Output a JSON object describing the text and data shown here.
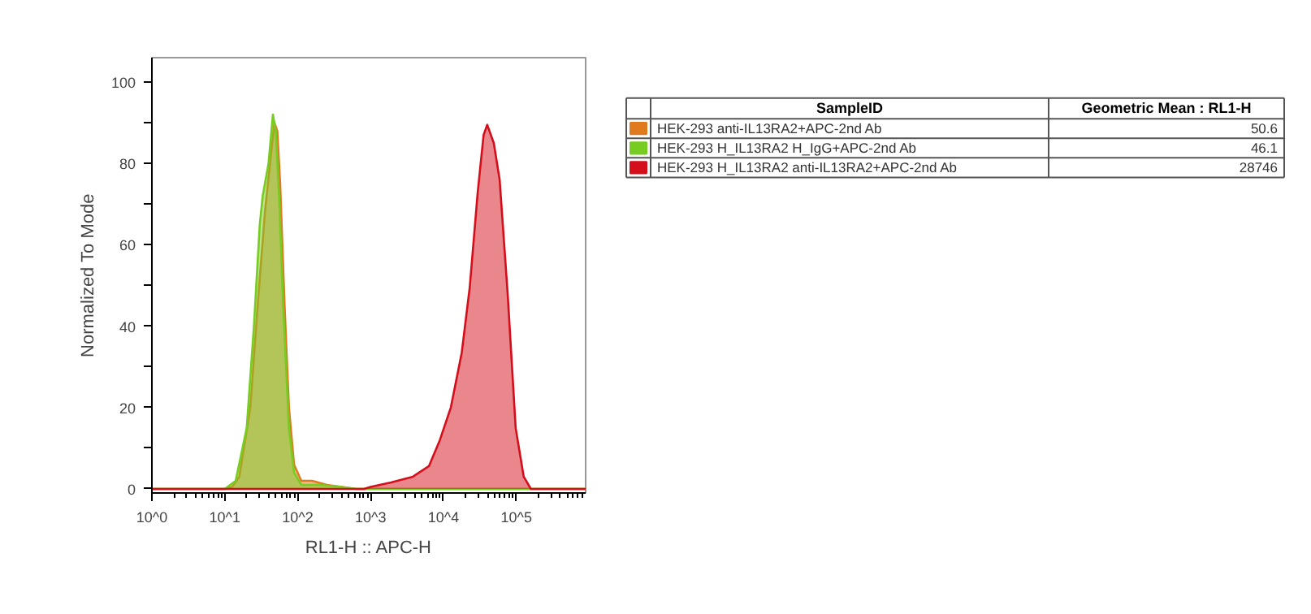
{
  "chart_data": {
    "type": "area",
    "xlabel": "RL1-H :: APC-H",
    "ylabel": "Normalized To Mode",
    "legend_title": "SampleID",
    "legend": "right",
    "log": "x",
    "grid": false,
    "xlim": [
      1,
      891000
    ],
    "ylim": [
      -1,
      106
    ],
    "xticks": [
      {
        "value": 1,
        "label": "10^0"
      },
      {
        "value": 10,
        "label": "10^1"
      },
      {
        "value": 100,
        "label": "10^2"
      },
      {
        "value": 1000,
        "label": "10^3"
      },
      {
        "value": 10000,
        "label": "10^4"
      },
      {
        "value": 100000,
        "label": "10^5"
      }
    ],
    "yticks": [
      0,
      {
        "value": 10,
        "label": null
      },
      20,
      {
        "value": 30,
        "label": null
      },
      40,
      {
        "value": 50,
        "label": null
      },
      60,
      {
        "value": 70,
        "label": null
      },
      80,
      {
        "value": 90,
        "label": null
      },
      100
    ],
    "annotations": [
      "Geometric Mean : RL1-H",
      "50.6",
      "46.1",
      "28746"
    ],
    "series": [
      {
        "name": "HEK-293 anti-IL13RA2+APC-2nd Ab",
        "color": "#e07a1f",
        "x": [
          1,
          10,
          12.6,
          15.8,
          22.4,
          28.2,
          35.5,
          41.7,
          47.9,
          52.5,
          57.5,
          66.1,
          75.9,
          89.1,
          112,
          158,
          251,
          398,
          631,
          891000
        ],
        "values": [
          0,
          0,
          0.5,
          3,
          20,
          45,
          68,
          80,
          90,
          88,
          75,
          45,
          20,
          6,
          2,
          2,
          1,
          0.5,
          0,
          0
        ]
      },
      {
        "name": "HEK-293 H_IL13RA2 H_IgG+APC-2nd Ab",
        "color": "#77cc22",
        "x": [
          1,
          10,
          14.1,
          20,
          25.1,
          30.2,
          33.1,
          39.8,
          45.7,
          50.1,
          56.2,
          63.1,
          75.9,
          89.1,
          112,
          200,
          398,
          631,
          891000
        ],
        "values": [
          0,
          0,
          2,
          15,
          40,
          65,
          72,
          80,
          92,
          88,
          70,
          45,
          15,
          4,
          1,
          1,
          0.5,
          0,
          0
        ]
      },
      {
        "name": "HEK-293 H_IL13RA2 anti-IL13RA2+APC-2nd Ab",
        "color": "#d40f1b",
        "x": [
          1,
          813,
          1000,
          1910,
          3800,
          6310,
          8910,
          12600,
          17800,
          22900,
          29500,
          35500,
          39800,
          49000,
          58900,
          75900,
          97700,
          126000,
          158000,
          891000
        ],
        "values": [
          0,
          0,
          0.5,
          1.6,
          3,
          5.6,
          12,
          20,
          33.5,
          49.5,
          73,
          87,
          89.5,
          85,
          76,
          48,
          15,
          3,
          0,
          0
        ]
      }
    ]
  }
}
